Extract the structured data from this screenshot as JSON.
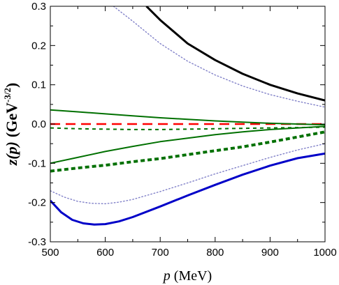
{
  "chart_data": {
    "type": "line",
    "xlabel": {
      "var": "p",
      "unit": " (MeV)"
    },
    "ylabel": {
      "var": "z(p)",
      "unit_prefix": "(GeV",
      "unit_exp": "-3/2",
      "unit_suffix": ")"
    },
    "xlim": [
      500,
      1000
    ],
    "ylim": [
      -0.3,
      0.3
    ],
    "xticks": [
      500,
      600,
      700,
      800,
      900,
      1000
    ],
    "yticks": [
      -0.3,
      -0.2,
      -0.1,
      0.0,
      0.1,
      0.2,
      0.3
    ],
    "xtick_labels": [
      "500",
      "600",
      "700",
      "800",
      "900",
      "1000"
    ],
    "ytick_labels": [
      "-0.3",
      "-0.2",
      "-0.1",
      "0.0",
      "0.1",
      "0.2",
      "0.3"
    ],
    "grid": false,
    "legend": "none",
    "series": [
      {
        "color": "#000000",
        "style": "solid",
        "width": 3,
        "x": [
          675,
          700,
          750,
          800,
          850,
          900,
          950,
          1000
        ],
        "y": [
          0.3,
          0.265,
          0.205,
          0.163,
          0.128,
          0.1,
          0.078,
          0.06
        ]
      },
      {
        "color": "#8080c8",
        "style": "dotted-fine",
        "width": 1.4,
        "x": [
          615,
          650,
          700,
          750,
          800,
          850,
          900,
          950,
          1000
        ],
        "y": [
          0.3,
          0.262,
          0.205,
          0.16,
          0.125,
          0.097,
          0.075,
          0.058,
          0.043
        ]
      },
      {
        "color": "#ff0000",
        "style": "dashed",
        "width": 2.5,
        "x": [
          500,
          1000
        ],
        "y": [
          0.0,
          0.0
        ]
      },
      {
        "color": "#007000",
        "style": "solid",
        "width": 2,
        "x": [
          500,
          550,
          600,
          650,
          700,
          750,
          800,
          850,
          900,
          950,
          1000
        ],
        "y": [
          0.036,
          0.031,
          0.026,
          0.021,
          0.016,
          0.012,
          0.008,
          0.005,
          0.002,
          0.0,
          -0.002
        ]
      },
      {
        "color": "#007000",
        "style": "dashed-short",
        "width": 2,
        "x": [
          500,
          550,
          600,
          650,
          700,
          750,
          800,
          850,
          900,
          950,
          1000
        ],
        "y": [
          -0.01,
          -0.012,
          -0.013,
          -0.014,
          -0.014,
          -0.013,
          -0.012,
          -0.011,
          -0.01,
          -0.009,
          -0.008
        ]
      },
      {
        "color": "#007000",
        "style": "solid",
        "width": 2,
        "x": [
          500,
          550,
          600,
          650,
          700,
          750,
          800,
          850,
          900,
          950,
          1000
        ],
        "y": [
          -0.1,
          -0.085,
          -0.07,
          -0.057,
          -0.045,
          -0.036,
          -0.027,
          -0.02,
          -0.014,
          -0.01,
          -0.006
        ]
      },
      {
        "color": "#007000",
        "style": "dotted-thick",
        "width": 4,
        "x": [
          500,
          550,
          600,
          650,
          700,
          750,
          800,
          850,
          900,
          950,
          1000
        ],
        "y": [
          -0.12,
          -0.112,
          -0.105,
          -0.096,
          -0.088,
          -0.078,
          -0.068,
          -0.058,
          -0.046,
          -0.033,
          -0.02
        ]
      },
      {
        "color": "#8080c8",
        "style": "dotted-fine",
        "width": 1.4,
        "x": [
          500,
          525,
          550,
          575,
          600,
          625,
          650,
          700,
          750,
          800,
          850,
          900,
          950,
          1000
        ],
        "y": [
          -0.17,
          -0.186,
          -0.197,
          -0.202,
          -0.203,
          -0.199,
          -0.192,
          -0.172,
          -0.15,
          -0.127,
          -0.106,
          -0.085,
          -0.066,
          -0.05
        ]
      },
      {
        "color": "#0000c8",
        "style": "solid",
        "width": 3,
        "x": [
          500,
          520,
          540,
          560,
          580,
          600,
          625,
          650,
          700,
          750,
          800,
          850,
          900,
          950,
          1000
        ],
        "y": [
          -0.195,
          -0.225,
          -0.244,
          -0.253,
          -0.256,
          -0.255,
          -0.248,
          -0.237,
          -0.21,
          -0.182,
          -0.155,
          -0.129,
          -0.106,
          -0.087,
          -0.075
        ]
      }
    ]
  }
}
